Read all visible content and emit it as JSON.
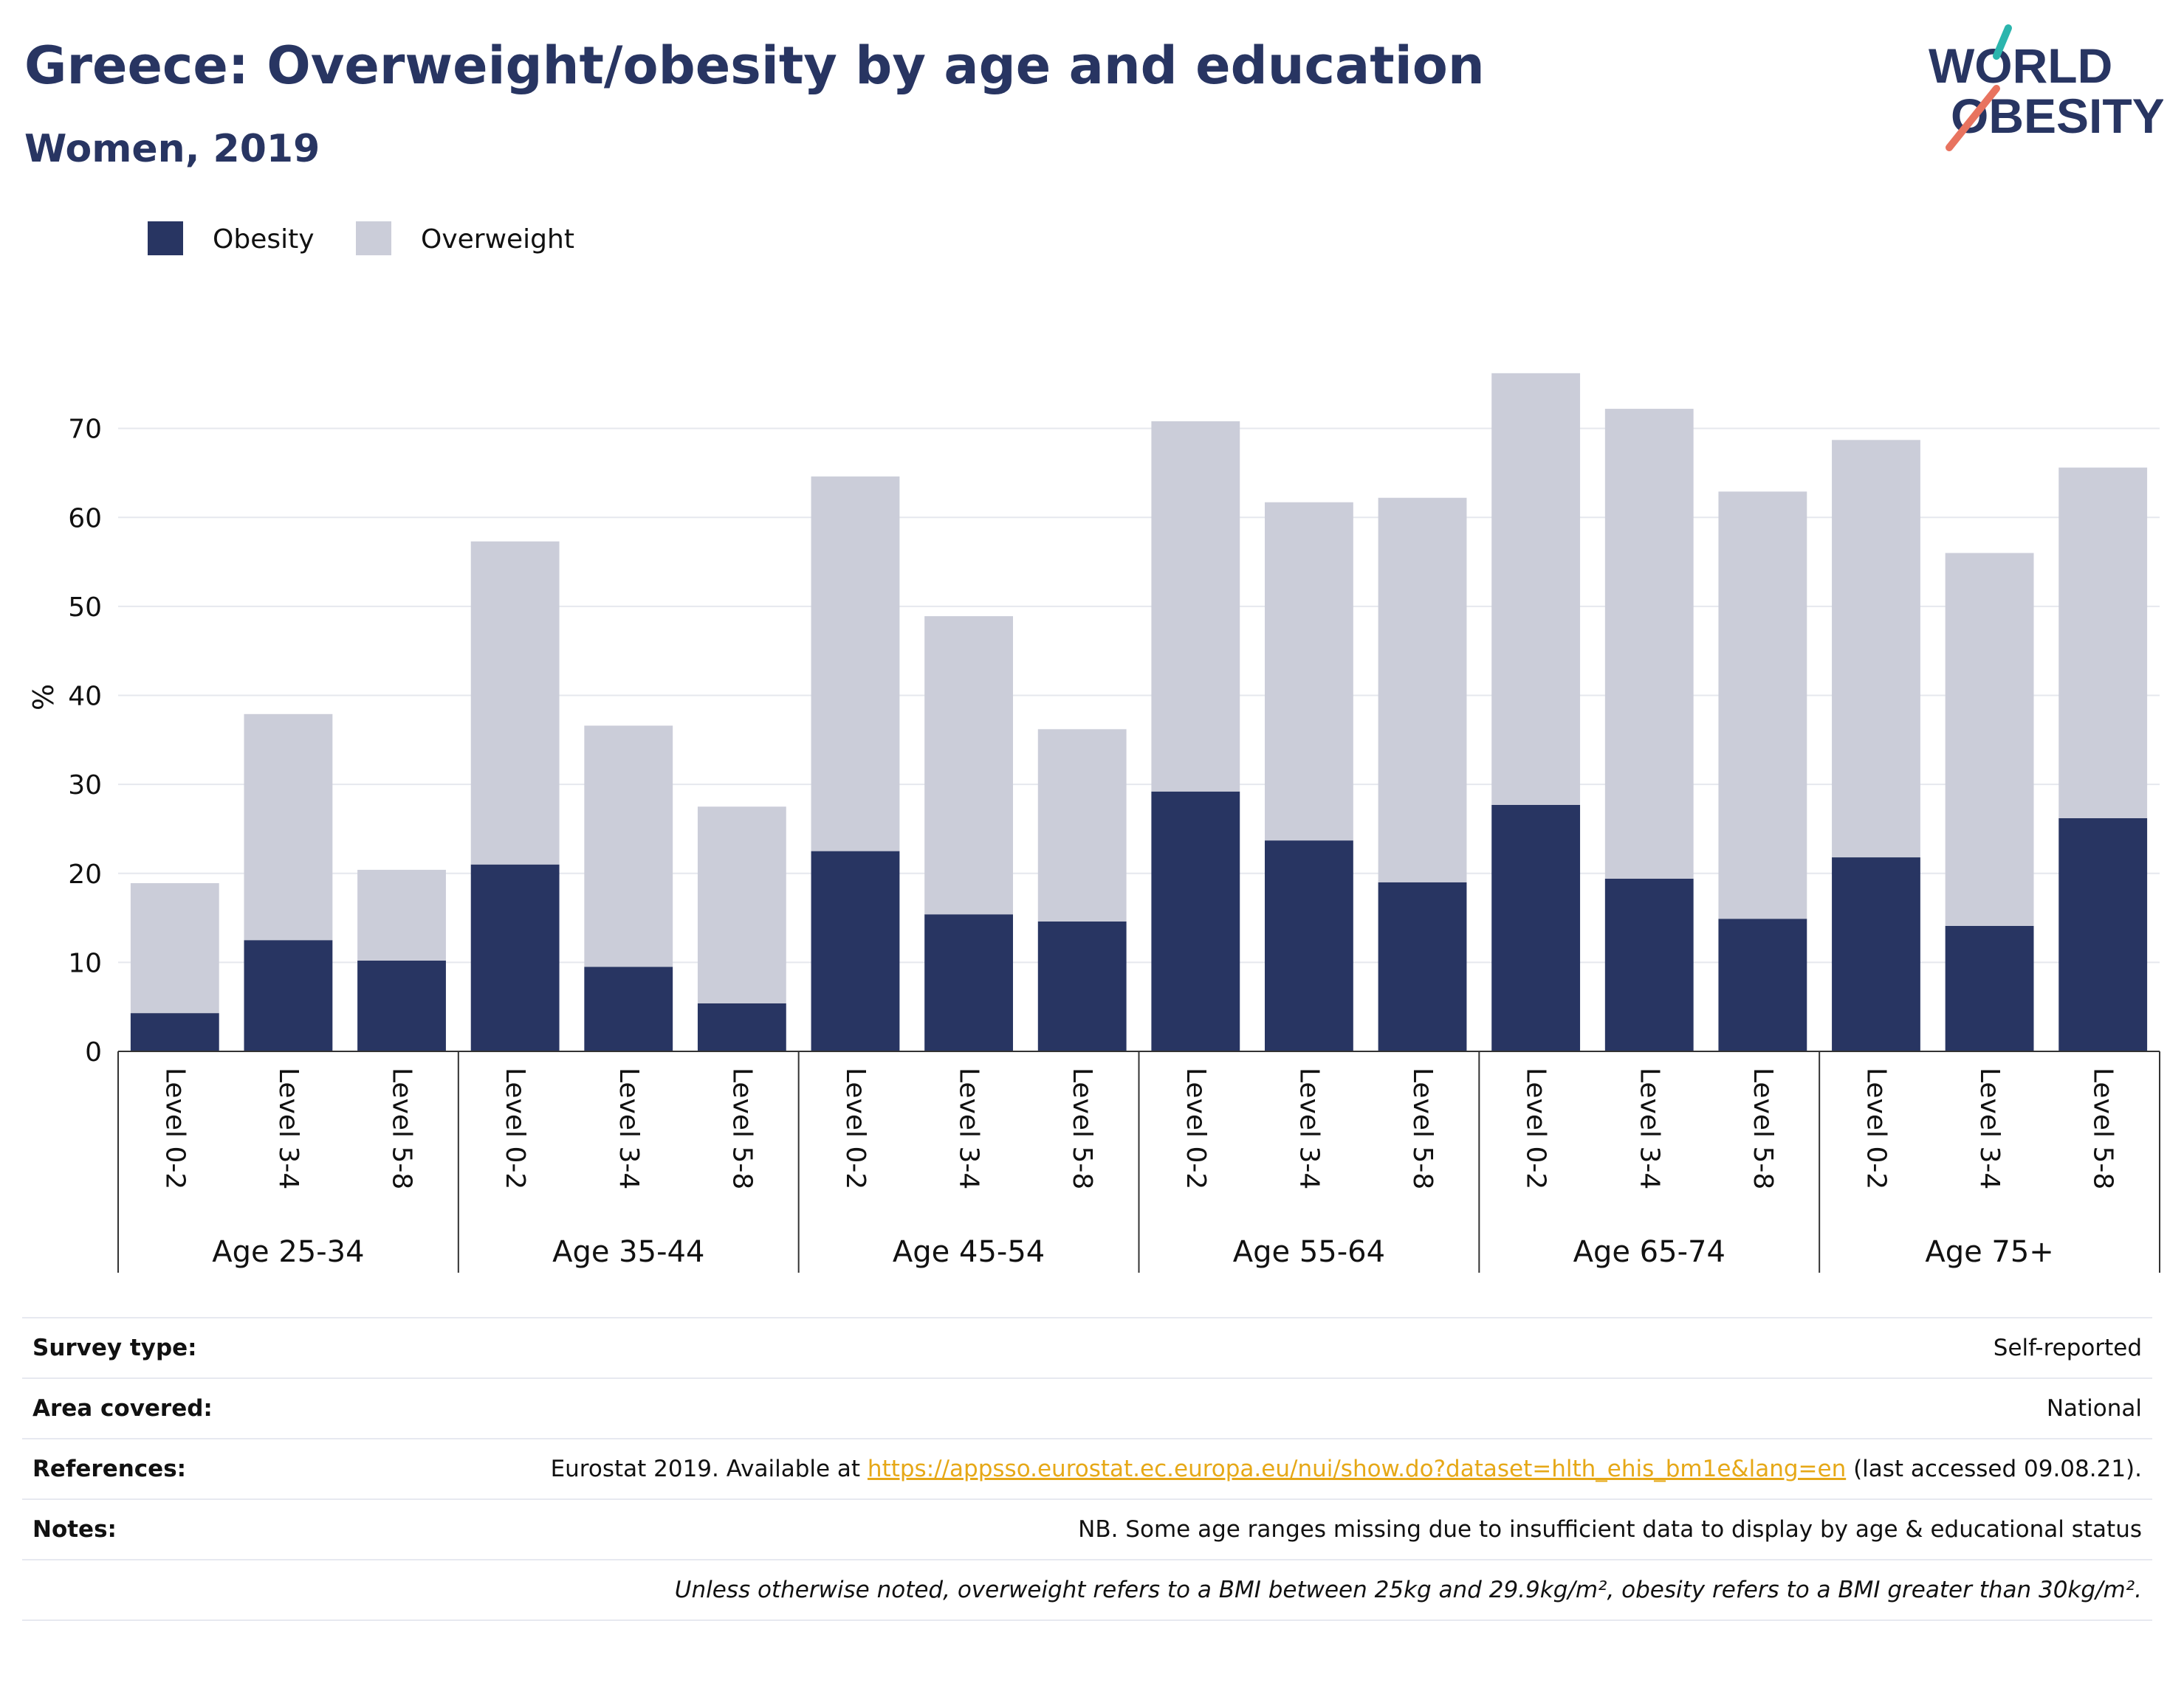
{
  "header": {
    "title": "Greece: Overweight/obesity by age and education",
    "subtitle": "Women, 2019"
  },
  "logo": {
    "line1": "WORLD",
    "line2": "OBESITY"
  },
  "colors": {
    "obesity": "#283562",
    "overweight": "#cbcdd9",
    "title": "#283562",
    "link": "#e6a817"
  },
  "chart_data": {
    "type": "bar",
    "stacked": true,
    "ylabel": "%",
    "ylim": [
      0,
      80
    ],
    "yticks": [
      0,
      10,
      20,
      30,
      40,
      50,
      60,
      70
    ],
    "grid": true,
    "legend_position": "top-left",
    "groups": [
      "Age 25-34",
      "Age 35-44",
      "Age 45-54",
      "Age 55-64",
      "Age 65-74",
      "Age 75+"
    ],
    "subcategories": [
      "Level 0-2",
      "Level 3-4",
      "Level 5-8"
    ],
    "series": [
      {
        "name": "Obesity",
        "values": [
          4.3,
          12.5,
          10.2,
          21.0,
          9.5,
          5.4,
          22.5,
          15.4,
          14.6,
          29.2,
          23.7,
          19.0,
          27.7,
          19.4,
          14.9,
          21.8,
          14.1,
          26.2
        ]
      },
      {
        "name": "Overweight",
        "values": [
          14.6,
          25.4,
          10.2,
          36.3,
          27.1,
          22.1,
          42.1,
          33.5,
          21.6,
          41.6,
          38.0,
          43.2,
          48.5,
          52.8,
          48.0,
          46.9,
          41.9,
          39.4
        ]
      }
    ]
  },
  "info": {
    "survey_type_label": "Survey type:",
    "survey_type_value": "Self-reported",
    "area_label": "Area covered:",
    "area_value": "National",
    "references_label": "References:",
    "references_prefix": "Eurostat 2019. Available at ",
    "references_link": "https://appsso.eurostat.ec.europa.eu/nui/show.do?dataset=hlth_ehis_bm1e&lang=en",
    "references_suffix": " (last accessed 09.08.21).",
    "notes_label": "Notes:",
    "notes_value": "NB. Some age ranges missing due to insufficient data to display by age & educational status",
    "footnote": "Unless otherwise noted, overweight refers to a BMI between 25kg and 29.9kg/m², obesity refers to a BMI greater than 30kg/m²."
  }
}
